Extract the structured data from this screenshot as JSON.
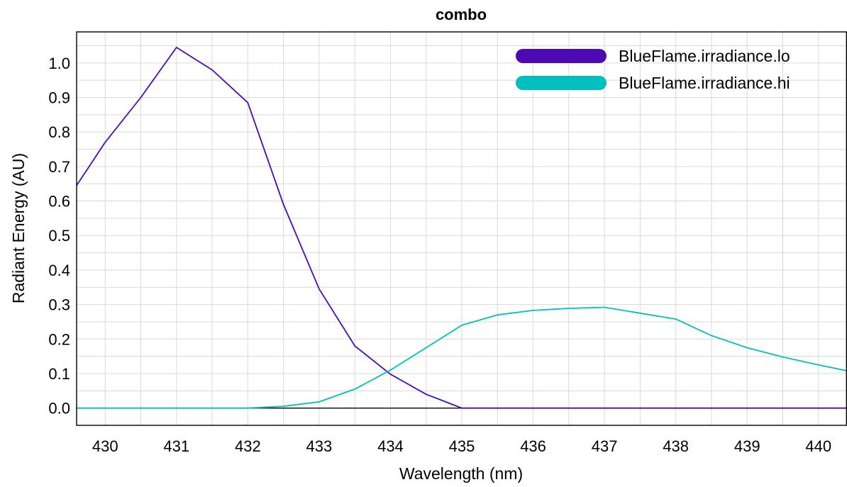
{
  "chart_data": {
    "type": "line",
    "title": "combo",
    "xlabel": "Wavelength (nm)",
    "ylabel": "Radiant Energy (AU)",
    "xlim": [
      429.6,
      440.4
    ],
    "ylim": [
      -0.05,
      1.09
    ],
    "xticks": [
      "430",
      "431",
      "432",
      "433",
      "434",
      "435",
      "436",
      "437",
      "438",
      "439",
      "440"
    ],
    "yticks": [
      "0.0",
      "0.1",
      "0.2",
      "0.3",
      "0.4",
      "0.5",
      "0.6",
      "0.7",
      "0.8",
      "0.9",
      "1.0"
    ],
    "grid": true,
    "legend_position": "top-right",
    "series": [
      {
        "name": "BlueFlame.irradiance.lo",
        "color": "#4b0ab4",
        "x": [
          429.6,
          430,
          430.5,
          431,
          431.5,
          432,
          432.5,
          433,
          433.5,
          434,
          434.5,
          435,
          435.5,
          436,
          436.5,
          437,
          437.5,
          438,
          438.5,
          439,
          439.5,
          440,
          440.4
        ],
        "y": [
          0.645,
          0.77,
          0.9,
          1.045,
          0.98,
          0.885,
          0.59,
          0.345,
          0.18,
          0.098,
          0.04,
          0.0,
          0.0,
          0.0,
          0.0,
          0.0,
          0.0,
          0.0,
          0.0,
          0.0,
          0.0,
          0.0,
          0.0
        ]
      },
      {
        "name": "BlueFlame.irradiance.hi",
        "color": "#00bfbf",
        "x": [
          429.6,
          430,
          430.5,
          431,
          431.5,
          432,
          432.5,
          433,
          433.5,
          434,
          434.5,
          435,
          435.5,
          436,
          436.5,
          437,
          437.5,
          438,
          438.5,
          439,
          439.5,
          440,
          440.4
        ],
        "y": [
          0.0,
          0.0,
          0.0,
          0.0,
          0.0,
          0.0,
          0.005,
          0.018,
          0.055,
          0.11,
          0.175,
          0.24,
          0.27,
          0.283,
          0.289,
          0.292,
          0.275,
          0.258,
          0.21,
          0.175,
          0.148,
          0.125,
          0.108
        ]
      }
    ]
  }
}
